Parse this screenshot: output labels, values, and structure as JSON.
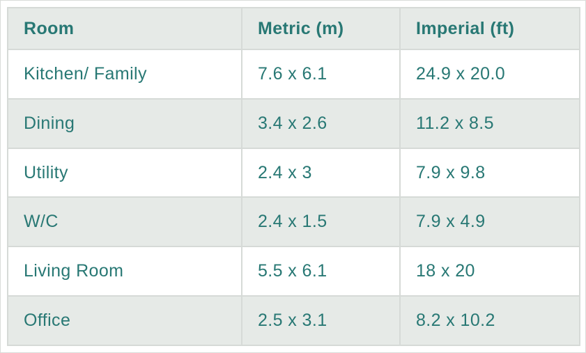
{
  "colors": {
    "text_teal": "#287874",
    "alt_row_bg": "#e6eae7",
    "row_bg": "#ffffff",
    "grid_line": "#d6dad7",
    "page_border": "#d9dcd9"
  },
  "table": {
    "headers": [
      "Room",
      "Metric (m)",
      "Imperial (ft)"
    ],
    "rows": [
      [
        "Kitchen/ Family",
        "7.6 x 6.1",
        "24.9 x 20.0"
      ],
      [
        "Dining",
        "3.4 x 2.6",
        "11.2 x 8.5"
      ],
      [
        "Utility",
        "2.4 x 3",
        "7.9 x 9.8"
      ],
      [
        "W/C",
        "2.4 x 1.5",
        "7.9 x 4.9"
      ],
      [
        "Living Room",
        "5.5 x 6.1",
        "18 x 20"
      ],
      [
        "Office",
        "2.5 x 3.1",
        "8.2 x 10.2"
      ]
    ]
  }
}
